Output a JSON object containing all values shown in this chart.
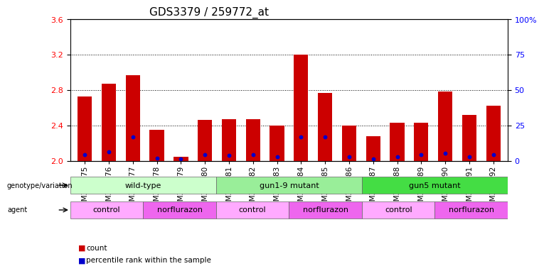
{
  "title": "GDS3379 / 259772_at",
  "samples": [
    "GSM323075",
    "GSM323076",
    "GSM323077",
    "GSM323078",
    "GSM323079",
    "GSM323080",
    "GSM323081",
    "GSM323082",
    "GSM323083",
    "GSM323084",
    "GSM323085",
    "GSM323086",
    "GSM323087",
    "GSM323088",
    "GSM323089",
    "GSM323090",
    "GSM323091",
    "GSM323092"
  ],
  "red_values": [
    2.73,
    2.87,
    2.97,
    2.35,
    2.05,
    2.46,
    2.47,
    2.47,
    2.4,
    3.2,
    2.77,
    2.4,
    2.28,
    2.43,
    2.43,
    2.78,
    2.52,
    2.62
  ],
  "blue_values": [
    2.07,
    2.1,
    2.27,
    2.03,
    2.02,
    2.07,
    2.06,
    2.07,
    2.05,
    2.27,
    2.27,
    2.05,
    2.02,
    2.05,
    2.07,
    2.09,
    2.05,
    2.07
  ],
  "ylim_left": [
    2.0,
    3.6
  ],
  "yticks_left": [
    2.0,
    2.4,
    2.8,
    3.2,
    3.6
  ],
  "ylim_right": [
    0,
    100
  ],
  "yticks_right": [
    0,
    25,
    50,
    75,
    100
  ],
  "ytick_labels_right": [
    "0",
    "25",
    "50",
    "75",
    "100%"
  ],
  "bar_color": "#cc0000",
  "blue_color": "#0000cc",
  "bar_width": 0.6,
  "title_fontsize": 11,
  "tick_label_fontsize": 7.5,
  "genotype_groups": [
    {
      "label": "wild-type",
      "start": 0,
      "end": 5,
      "color": "#ccffcc",
      "border": "#666666"
    },
    {
      "label": "gun1-9 mutant",
      "start": 6,
      "end": 11,
      "color": "#99ee99",
      "border": "#666666"
    },
    {
      "label": "gun5 mutant",
      "start": 12,
      "end": 17,
      "color": "#44dd44",
      "border": "#666666"
    }
  ],
  "agent_groups": [
    {
      "label": "control",
      "start": 0,
      "end": 2,
      "color": "#ffaaff",
      "border": "#666666"
    },
    {
      "label": "norflurazon",
      "start": 3,
      "end": 5,
      "color": "#ee66ee",
      "border": "#666666"
    },
    {
      "label": "control",
      "start": 6,
      "end": 8,
      "color": "#ffaaff",
      "border": "#666666"
    },
    {
      "label": "norflurazon",
      "start": 9,
      "end": 11,
      "color": "#ee66ee",
      "border": "#666666"
    },
    {
      "label": "control",
      "start": 12,
      "end": 14,
      "color": "#ffaaff",
      "border": "#666666"
    },
    {
      "label": "norflurazon",
      "start": 15,
      "end": 17,
      "color": "#ee66ee",
      "border": "#666666"
    }
  ],
  "legend_count_color": "#cc0000",
  "legend_percentile_color": "#0000cc"
}
